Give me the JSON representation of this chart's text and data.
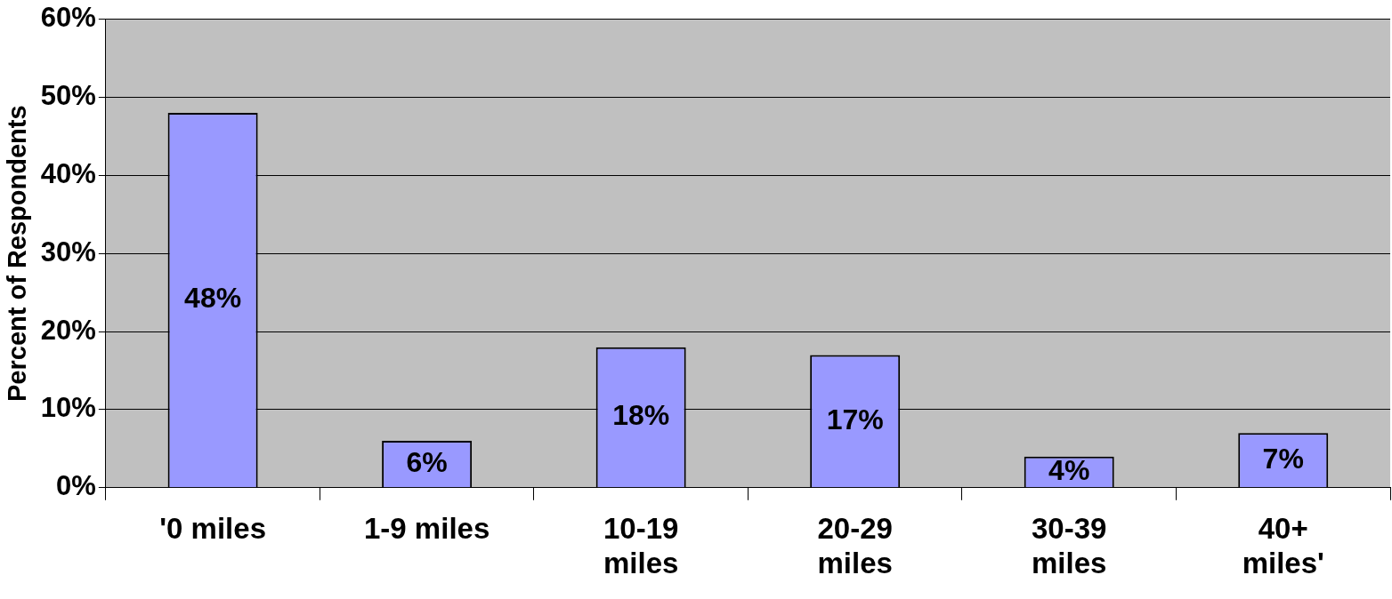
{
  "chart_data": {
    "type": "bar",
    "ylabel": "Percent of Respondents",
    "categories": [
      "'0 miles",
      "1-9 miles",
      "10-19 miles",
      "20-29 miles",
      "30-39 miles",
      "40+ miles'"
    ],
    "values": [
      48,
      6,
      18,
      17,
      4,
      7
    ],
    "value_labels": [
      "48%",
      "6%",
      "18%",
      "17%",
      "4%",
      "7%"
    ],
    "color": "#9999ff",
    "ylim": [
      0,
      60
    ],
    "yticks": [
      {
        "value": 0,
        "label": "0%"
      },
      {
        "value": 10,
        "label": "10%"
      },
      {
        "value": 20,
        "label": "20%"
      },
      {
        "value": 30,
        "label": "30%"
      },
      {
        "value": 40,
        "label": "40%"
      },
      {
        "value": 50,
        "label": "50%"
      },
      {
        "value": 60,
        "label": "60%"
      }
    ],
    "grid": "y",
    "legend": false
  }
}
